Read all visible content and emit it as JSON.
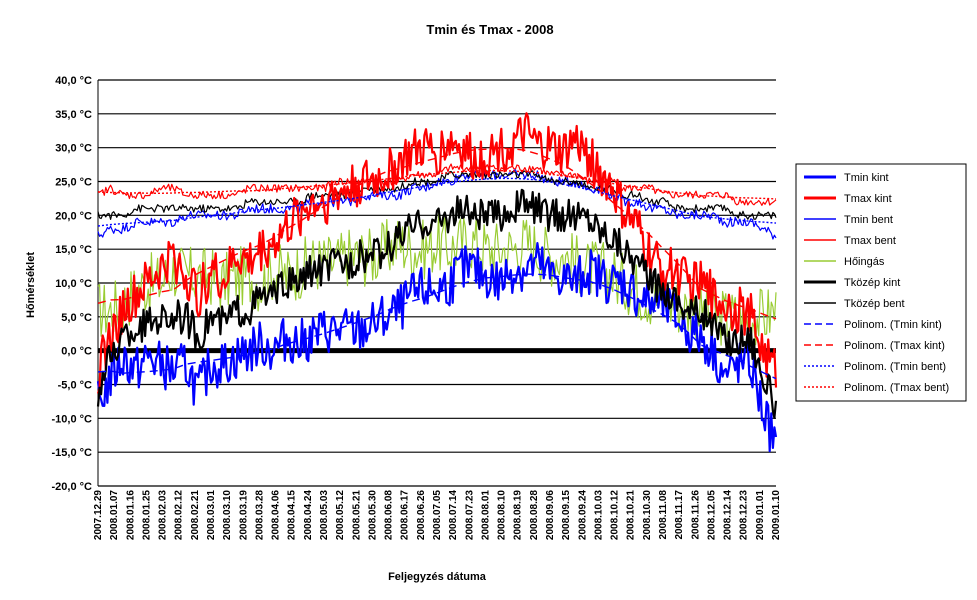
{
  "chart_data": {
    "type": "line",
    "title": "Tmin és Tmax - 2008",
    "xlabel": "Feljegyzés dátuma",
    "ylabel": "Hőmérséklet",
    "y_unit": "°C",
    "ylim": [
      -20,
      40
    ],
    "y_ticks": [
      -20,
      -15,
      -10,
      -5,
      0,
      5,
      10,
      15,
      20,
      25,
      30,
      35,
      40
    ],
    "y_tick_labels": [
      "-20,0 °C",
      "-15,0 °C",
      "-10,0 °C",
      "-5,0 °C",
      "0,0 °C",
      "5,0 °C",
      "10,0 °C",
      "15,0 °C",
      "20,0 °C",
      "25,0 °C",
      "30,0 °C",
      "35,0 °C",
      "40,0 °C"
    ],
    "x_tick_labels": [
      "2007.12.29",
      "2008.01.07",
      "2008.01.16",
      "2008.01.25",
      "2008.02.03",
      "2008.02.12",
      "2008.02.21",
      "2008.03.01",
      "2008.03.10",
      "2008.03.19",
      "2008.03.28",
      "2008.04.06",
      "2008.04.15",
      "2008.04.24",
      "2008.05.03",
      "2008.05.12",
      "2008.05.21",
      "2008.05.30",
      "2008.06.08",
      "2008.06.17",
      "2008.06.26",
      "2008.07.05",
      "2008.07.14",
      "2008.07.23",
      "2008.08.01",
      "2008.08.10",
      "2008.08.19",
      "2008.08.28",
      "2008.09.06",
      "2008.09.15",
      "2008.09.24",
      "2008.10.03",
      "2008.10.12",
      "2008.10.21",
      "2008.10.30",
      "2008.11.08",
      "2008.11.17",
      "2008.11.26",
      "2008.12.05",
      "2008.12.14",
      "2008.12.23",
      "2009.01.01",
      "2009.01.10"
    ],
    "grid": true,
    "legend_position": "right",
    "series": [
      {
        "name": "Tmin kint",
        "color": "#0000ff",
        "style": "solid-thick",
        "values": [
          -8,
          -4,
          -1,
          -3,
          -1,
          -2,
          -3,
          -2,
          -6,
          -2,
          -2,
          -1,
          0,
          1,
          0,
          2,
          1,
          2,
          3,
          3,
          3,
          3,
          4,
          5,
          6,
          8,
          9,
          9,
          10,
          12,
          12,
          11,
          10,
          12,
          12,
          13,
          11,
          11,
          10,
          12,
          11,
          10,
          10,
          8,
          7,
          7,
          5,
          3,
          2,
          0,
          -4,
          -2,
          -2,
          -9,
          -14
        ]
      },
      {
        "name": "Tmax kint",
        "color": "#ff0000",
        "style": "solid-thick",
        "values": [
          -3,
          2,
          6,
          8,
          10,
          12,
          14,
          11,
          8,
          12,
          10,
          14,
          13,
          15,
          16,
          18,
          20,
          22,
          22,
          23,
          24,
          25,
          25,
          26,
          28,
          29,
          30,
          29,
          31,
          30,
          28,
          29,
          30,
          30,
          32,
          30,
          30,
          29,
          31,
          29,
          26,
          24,
          20,
          18,
          14,
          12,
          12,
          10,
          10,
          8,
          7,
          6,
          5,
          0,
          -3
        ]
      },
      {
        "name": "Tmin bent",
        "color": "#0000ff",
        "style": "solid-thin",
        "values": [
          17,
          18,
          18,
          19,
          19,
          19,
          19,
          20,
          20,
          20,
          20,
          20,
          21,
          21,
          21,
          21,
          21,
          22,
          22,
          22,
          22,
          23,
          23,
          23,
          23,
          24,
          24,
          25,
          25,
          26,
          26,
          26,
          26,
          26,
          26,
          26,
          25,
          25,
          25,
          24,
          24,
          23,
          22,
          22,
          21,
          21,
          20,
          20,
          20,
          20,
          19,
          19,
          19,
          18,
          17
        ]
      },
      {
        "name": "Tmax bent",
        "color": "#ff0000",
        "style": "solid-thin",
        "values": [
          23,
          24,
          23,
          23,
          23,
          24,
          24,
          23,
          23,
          23,
          23,
          23,
          24,
          24,
          24,
          24,
          24,
          24,
          24,
          25,
          25,
          25,
          25,
          25,
          25,
          26,
          26,
          26,
          27,
          27,
          27,
          27,
          27,
          27,
          27,
          27,
          26,
          26,
          26,
          25,
          25,
          25,
          24,
          24,
          24,
          23,
          23,
          23,
          23,
          23,
          23,
          22,
          22,
          22,
          22
        ]
      },
      {
        "name": "Hőingás",
        "color": "#99cc33",
        "style": "solid-thin",
        "values": [
          6,
          6,
          7,
          9,
          10,
          10,
          12,
          11,
          11,
          11,
          10,
          11,
          11,
          10,
          12,
          11,
          12,
          13,
          13,
          13,
          14,
          14,
          14,
          15,
          16,
          15,
          15,
          16,
          15,
          16,
          16,
          15,
          15,
          15,
          16,
          15,
          14,
          14,
          13,
          12,
          12,
          11,
          10,
          9,
          8,
          7,
          7,
          6,
          6,
          5,
          5,
          5,
          5,
          5,
          6
        ]
      },
      {
        "name": "Tközép kint",
        "color": "#000000",
        "style": "solid-thick",
        "values": [
          -6,
          -1,
          2,
          3,
          4,
          5,
          5,
          5,
          2,
          5,
          4,
          6,
          6,
          8,
          8,
          10,
          10,
          12,
          12,
          13,
          13,
          14,
          14,
          15,
          17,
          18,
          19,
          19,
          20,
          21,
          20,
          20,
          20,
          21,
          22,
          21,
          20,
          20,
          20,
          20,
          18,
          17,
          15,
          13,
          10,
          9,
          8,
          6,
          6,
          4,
          1,
          2,
          2,
          -4,
          -8
        ]
      },
      {
        "name": "Tközép bent",
        "color": "#000000",
        "style": "solid-thin",
        "values": [
          20,
          20,
          20,
          21,
          21,
          21,
          21,
          21,
          21,
          21,
          21,
          21,
          22,
          22,
          22,
          22,
          22,
          23,
          23,
          23,
          23,
          24,
          24,
          24,
          24,
          25,
          25,
          25,
          26,
          26,
          26,
          26,
          26,
          26,
          26,
          26,
          25,
          25,
          25,
          24,
          24,
          24,
          23,
          23,
          22,
          22,
          21,
          21,
          21,
          21,
          21,
          20,
          20,
          20,
          20
        ]
      },
      {
        "name": "Polinom. (Tmin kint)",
        "color": "#0000ff",
        "style": "dashed"
      },
      {
        "name": "Polinom. (Tmax kint)",
        "color": "#ff0000",
        "style": "dashed"
      },
      {
        "name": "Polinom. (Tmin bent)",
        "color": "#0000ff",
        "style": "dotted"
      },
      {
        "name": "Polinom. (Tmax bent)",
        "color": "#ff0000",
        "style": "dotted"
      }
    ]
  }
}
